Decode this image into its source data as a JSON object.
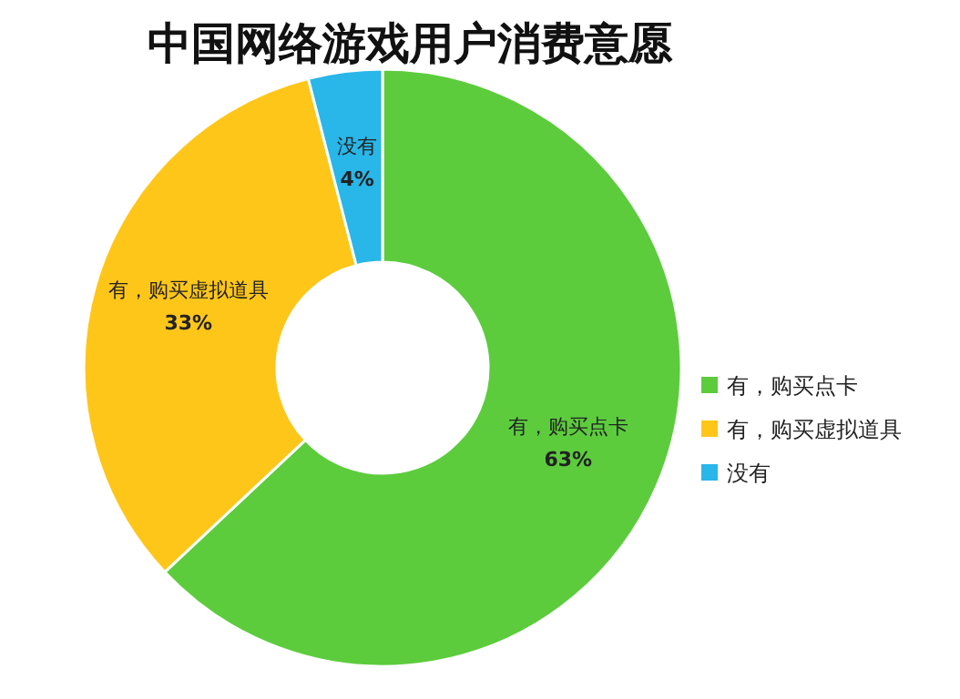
{
  "chart_data": {
    "type": "donut",
    "title": "中国网络游戏用户消费意愿",
    "categories": [
      "有，购买点卡",
      "有，购买虚拟道具",
      "没有"
    ],
    "values": [
      63,
      33,
      4
    ],
    "colors": [
      "#5ccc3c",
      "#ffc61a",
      "#29b6e8"
    ],
    "value_labels": [
      "63%",
      "33%",
      "4%"
    ],
    "legend": "right"
  }
}
